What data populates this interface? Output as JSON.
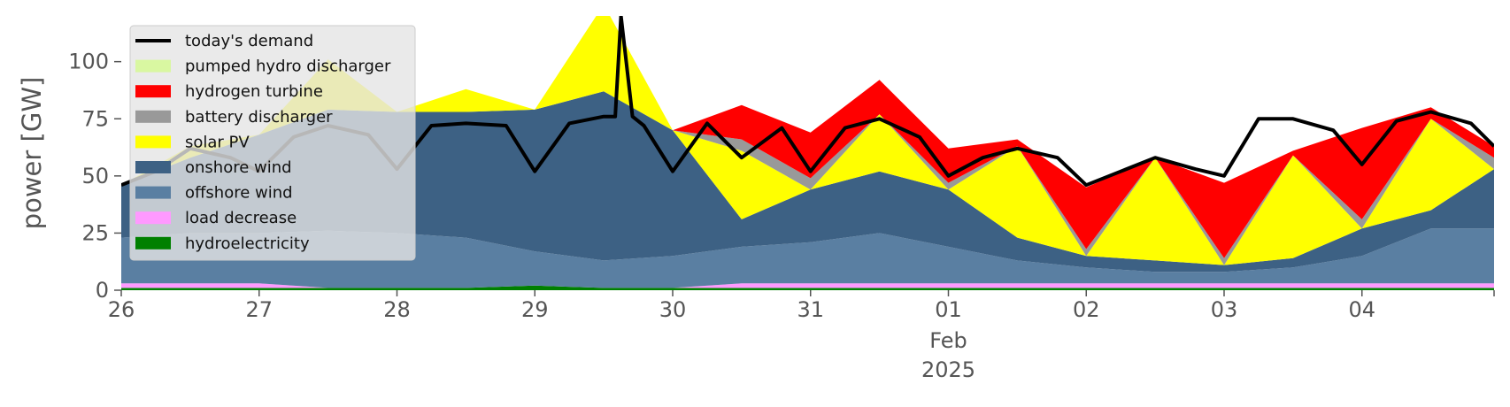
{
  "chart_data": {
    "type": "area",
    "title": "",
    "xlabel": "",
    "ylabel": "power [GW]",
    "ylim": [
      0,
      120
    ],
    "xlim": [
      "2025-01-26",
      "2025-02-04T23:00"
    ],
    "grid": false,
    "legend_position": "top-left",
    "y_ticks": [
      0,
      25,
      50,
      75,
      100
    ],
    "x_ticks": [
      {
        "date": "2025-01-26",
        "label": "26"
      },
      {
        "date": "2025-01-27",
        "label": "27"
      },
      {
        "date": "2025-01-28",
        "label": "28"
      },
      {
        "date": "2025-01-29",
        "label": "29"
      },
      {
        "date": "2025-01-30",
        "label": "30"
      },
      {
        "date": "2025-01-31",
        "label": "31"
      },
      {
        "date": "2025-02-01",
        "label": "01"
      },
      {
        "date": "2025-02-02",
        "label": "02"
      },
      {
        "date": "2025-02-03",
        "label": "03"
      },
      {
        "date": "2025-02-04",
        "label": "04"
      }
    ],
    "x_tick_sublabel": {
      "date": "2025-02-01",
      "month": "Feb",
      "year": "2025"
    },
    "x": [
      "2025-01-26",
      "2025-01-26T12:00",
      "2025-01-27",
      "2025-01-27T12:00",
      "2025-01-28",
      "2025-01-28T12:00",
      "2025-01-29",
      "2025-01-29T12:00",
      "2025-01-30",
      "2025-01-30T12:00",
      "2025-01-31",
      "2025-01-31T12:00",
      "2025-02-01",
      "2025-02-01T12:00",
      "2025-02-02",
      "2025-02-02T12:00",
      "2025-02-03",
      "2025-02-03T12:00",
      "2025-02-04",
      "2025-02-04T12:00",
      "2025-02-04T23:00"
    ],
    "series": [
      {
        "name": "hydroelectricity",
        "color": "#008000",
        "values": [
          1,
          1,
          1,
          1,
          1,
          1,
          2,
          1,
          1,
          1,
          1,
          1,
          1,
          1,
          1,
          1,
          1,
          1,
          1,
          1,
          1
        ]
      },
      {
        "name": "load decrease",
        "color": "#ff99ff",
        "values": [
          2,
          2,
          2,
          0,
          0,
          0,
          0,
          0,
          0,
          2,
          2,
          2,
          2,
          2,
          2,
          2,
          2,
          2,
          2,
          2,
          2
        ]
      },
      {
        "name": "offshore wind",
        "color": "#5a7fa2",
        "values": [
          20,
          22,
          22,
          25,
          24,
          22,
          15,
          12,
          14,
          16,
          18,
          22,
          16,
          10,
          7,
          5,
          5,
          7,
          12,
          24,
          24
        ]
      },
      {
        "name": "onshore wind",
        "color": "#3d6184",
        "values": [
          23,
          33,
          43,
          53,
          53,
          55,
          62,
          74,
          55,
          12,
          23,
          27,
          25,
          10,
          5,
          5,
          3,
          4,
          12,
          8,
          26
        ]
      },
      {
        "name": "solar PV",
        "color": "#ffff00",
        "values": [
          0,
          5,
          0,
          22,
          0,
          10,
          0,
          38,
          0,
          30,
          0,
          25,
          0,
          40,
          0,
          45,
          0,
          45,
          0,
          40,
          0
        ]
      },
      {
        "name": "battery discharger",
        "color": "#999999",
        "values": [
          0,
          0,
          0,
          0,
          0,
          0,
          0,
          0,
          0,
          5,
          5,
          0,
          3,
          0,
          3,
          0,
          3,
          0,
          4,
          0,
          5
        ]
      },
      {
        "name": "hydrogen turbine",
        "color": "#ff0000",
        "values": [
          0,
          0,
          0,
          0,
          0,
          0,
          0,
          0,
          0,
          15,
          20,
          15,
          15,
          3,
          27,
          0,
          33,
          2,
          40,
          5,
          5
        ]
      },
      {
        "name": "pumped hydro discharger",
        "color": "#d9f7a1",
        "values": [
          0,
          0,
          0,
          0,
          0,
          0,
          0,
          0,
          0,
          0,
          0,
          0,
          0,
          0,
          0,
          0,
          0,
          0,
          0,
          0,
          0
        ]
      }
    ],
    "demand": {
      "name": "today's demand",
      "color": "#000000",
      "x": [
        "2025-01-26",
        "2025-01-26T06:00",
        "2025-01-26T12:00",
        "2025-01-26T19:00",
        "2025-01-27",
        "2025-01-27T06:00",
        "2025-01-27T12:00",
        "2025-01-27T19:00",
        "2025-01-28",
        "2025-01-28T06:00",
        "2025-01-28T12:00",
        "2025-01-28T19:00",
        "2025-01-29",
        "2025-01-29T06:00",
        "2025-01-29T12:00",
        "2025-01-29T14:00",
        "2025-01-29T15:00",
        "2025-01-29T17:00",
        "2025-01-29T19:00",
        "2025-01-30",
        "2025-01-30T06:00",
        "2025-01-30T12:00",
        "2025-01-30T19:00",
        "2025-01-31",
        "2025-01-31T06:00",
        "2025-01-31T12:00",
        "2025-01-31T19:00",
        "2025-02-01",
        "2025-02-01T06:00",
        "2025-02-01T12:00",
        "2025-02-01T19:00",
        "2025-02-02",
        "2025-02-02T06:00",
        "2025-02-02T12:00",
        "2025-02-02T19:00",
        "2025-02-03",
        "2025-02-03T06:00",
        "2025-02-03T12:00",
        "2025-02-03T19:00",
        "2025-02-04",
        "2025-02-04T06:00",
        "2025-02-04T12:00",
        "2025-02-04T19:00",
        "2025-02-04T23:00"
      ],
      "values": [
        46,
        52,
        62,
        58,
        52,
        67,
        72,
        68,
        53,
        72,
        73,
        72,
        52,
        73,
        76,
        76,
        120,
        76,
        72,
        52,
        73,
        58,
        71,
        52,
        71,
        75,
        67,
        50,
        58,
        62,
        58,
        46,
        52,
        58,
        53,
        50,
        75,
        75,
        70,
        55,
        74,
        78,
        73,
        63
      ]
    }
  }
}
